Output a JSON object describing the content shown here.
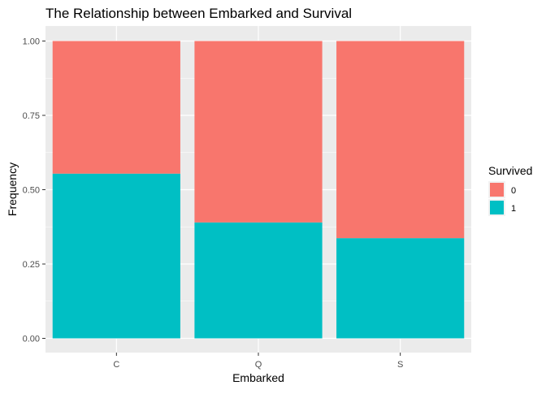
{
  "chart_data": {
    "type": "bar",
    "stacked": "fill",
    "title": "The Relationship between Embarked and Survival",
    "xlabel": "Embarked",
    "ylabel": "Frequency",
    "categories": [
      "C",
      "Q",
      "S"
    ],
    "ylim": [
      0,
      1
    ],
    "yticks": [
      0.0,
      0.25,
      0.5,
      0.75,
      1.0
    ],
    "ytick_labels": [
      "0.00",
      "0.25",
      "0.50",
      "0.75",
      "1.00"
    ],
    "grid": true,
    "legend_title": "Survived",
    "legend_position": "right",
    "series": [
      {
        "name": "0",
        "color": "#F8766D",
        "values": [
          0.446,
          0.61,
          0.663
        ]
      },
      {
        "name": "1",
        "color": "#00BFC4",
        "values": [
          0.554,
          0.39,
          0.337
        ]
      }
    ],
    "panel_background": "#EBEBEB"
  }
}
